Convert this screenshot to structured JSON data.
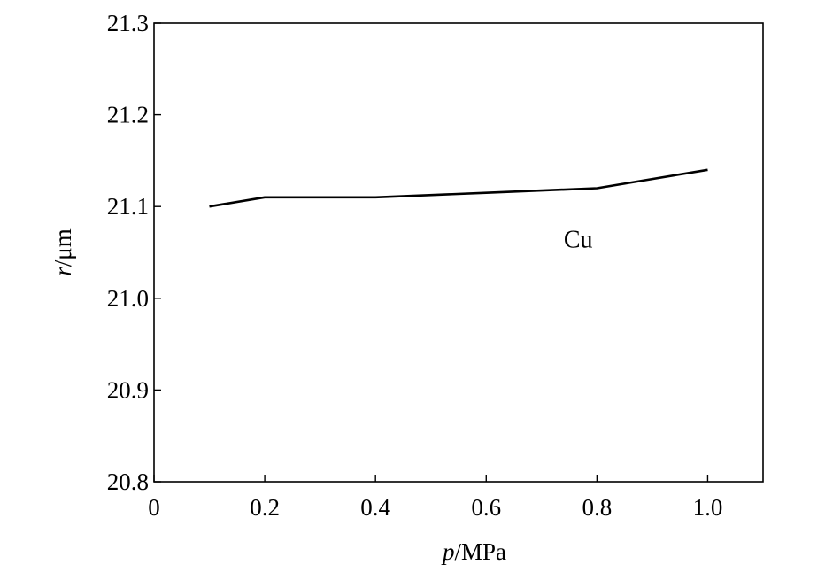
{
  "chart_data": {
    "type": "line",
    "title": "",
    "xlabel": {
      "var": "p",
      "unit": "/MPa"
    },
    "ylabel": {
      "var": "r",
      "unit": "/μm"
    },
    "xlim": [
      0,
      1.1
    ],
    "ylim": [
      20.8,
      21.3
    ],
    "xticks": [
      0,
      0.2,
      0.4,
      0.6,
      0.8,
      1.0
    ],
    "xtick_labels": [
      "0",
      "0.2",
      "0.4",
      "0.6",
      "0.8",
      "1.0"
    ],
    "yticks": [
      20.8,
      20.9,
      21.0,
      21.1,
      21.2,
      21.3
    ],
    "ytick_labels": [
      "20.8",
      "20.9",
      "21.0",
      "21.1",
      "21.2",
      "21.3"
    ],
    "grid": false,
    "series": [
      {
        "x": [
          0.1,
          0.2,
          0.4,
          0.6,
          0.8,
          0.9,
          1.0
        ],
        "y": [
          21.1,
          21.11,
          21.11,
          21.115,
          21.12,
          21.13,
          21.14
        ],
        "color": "#000000"
      }
    ],
    "annotations": [
      {
        "text": "Cu",
        "x": 0.74,
        "y": 21.065
      }
    ]
  }
}
